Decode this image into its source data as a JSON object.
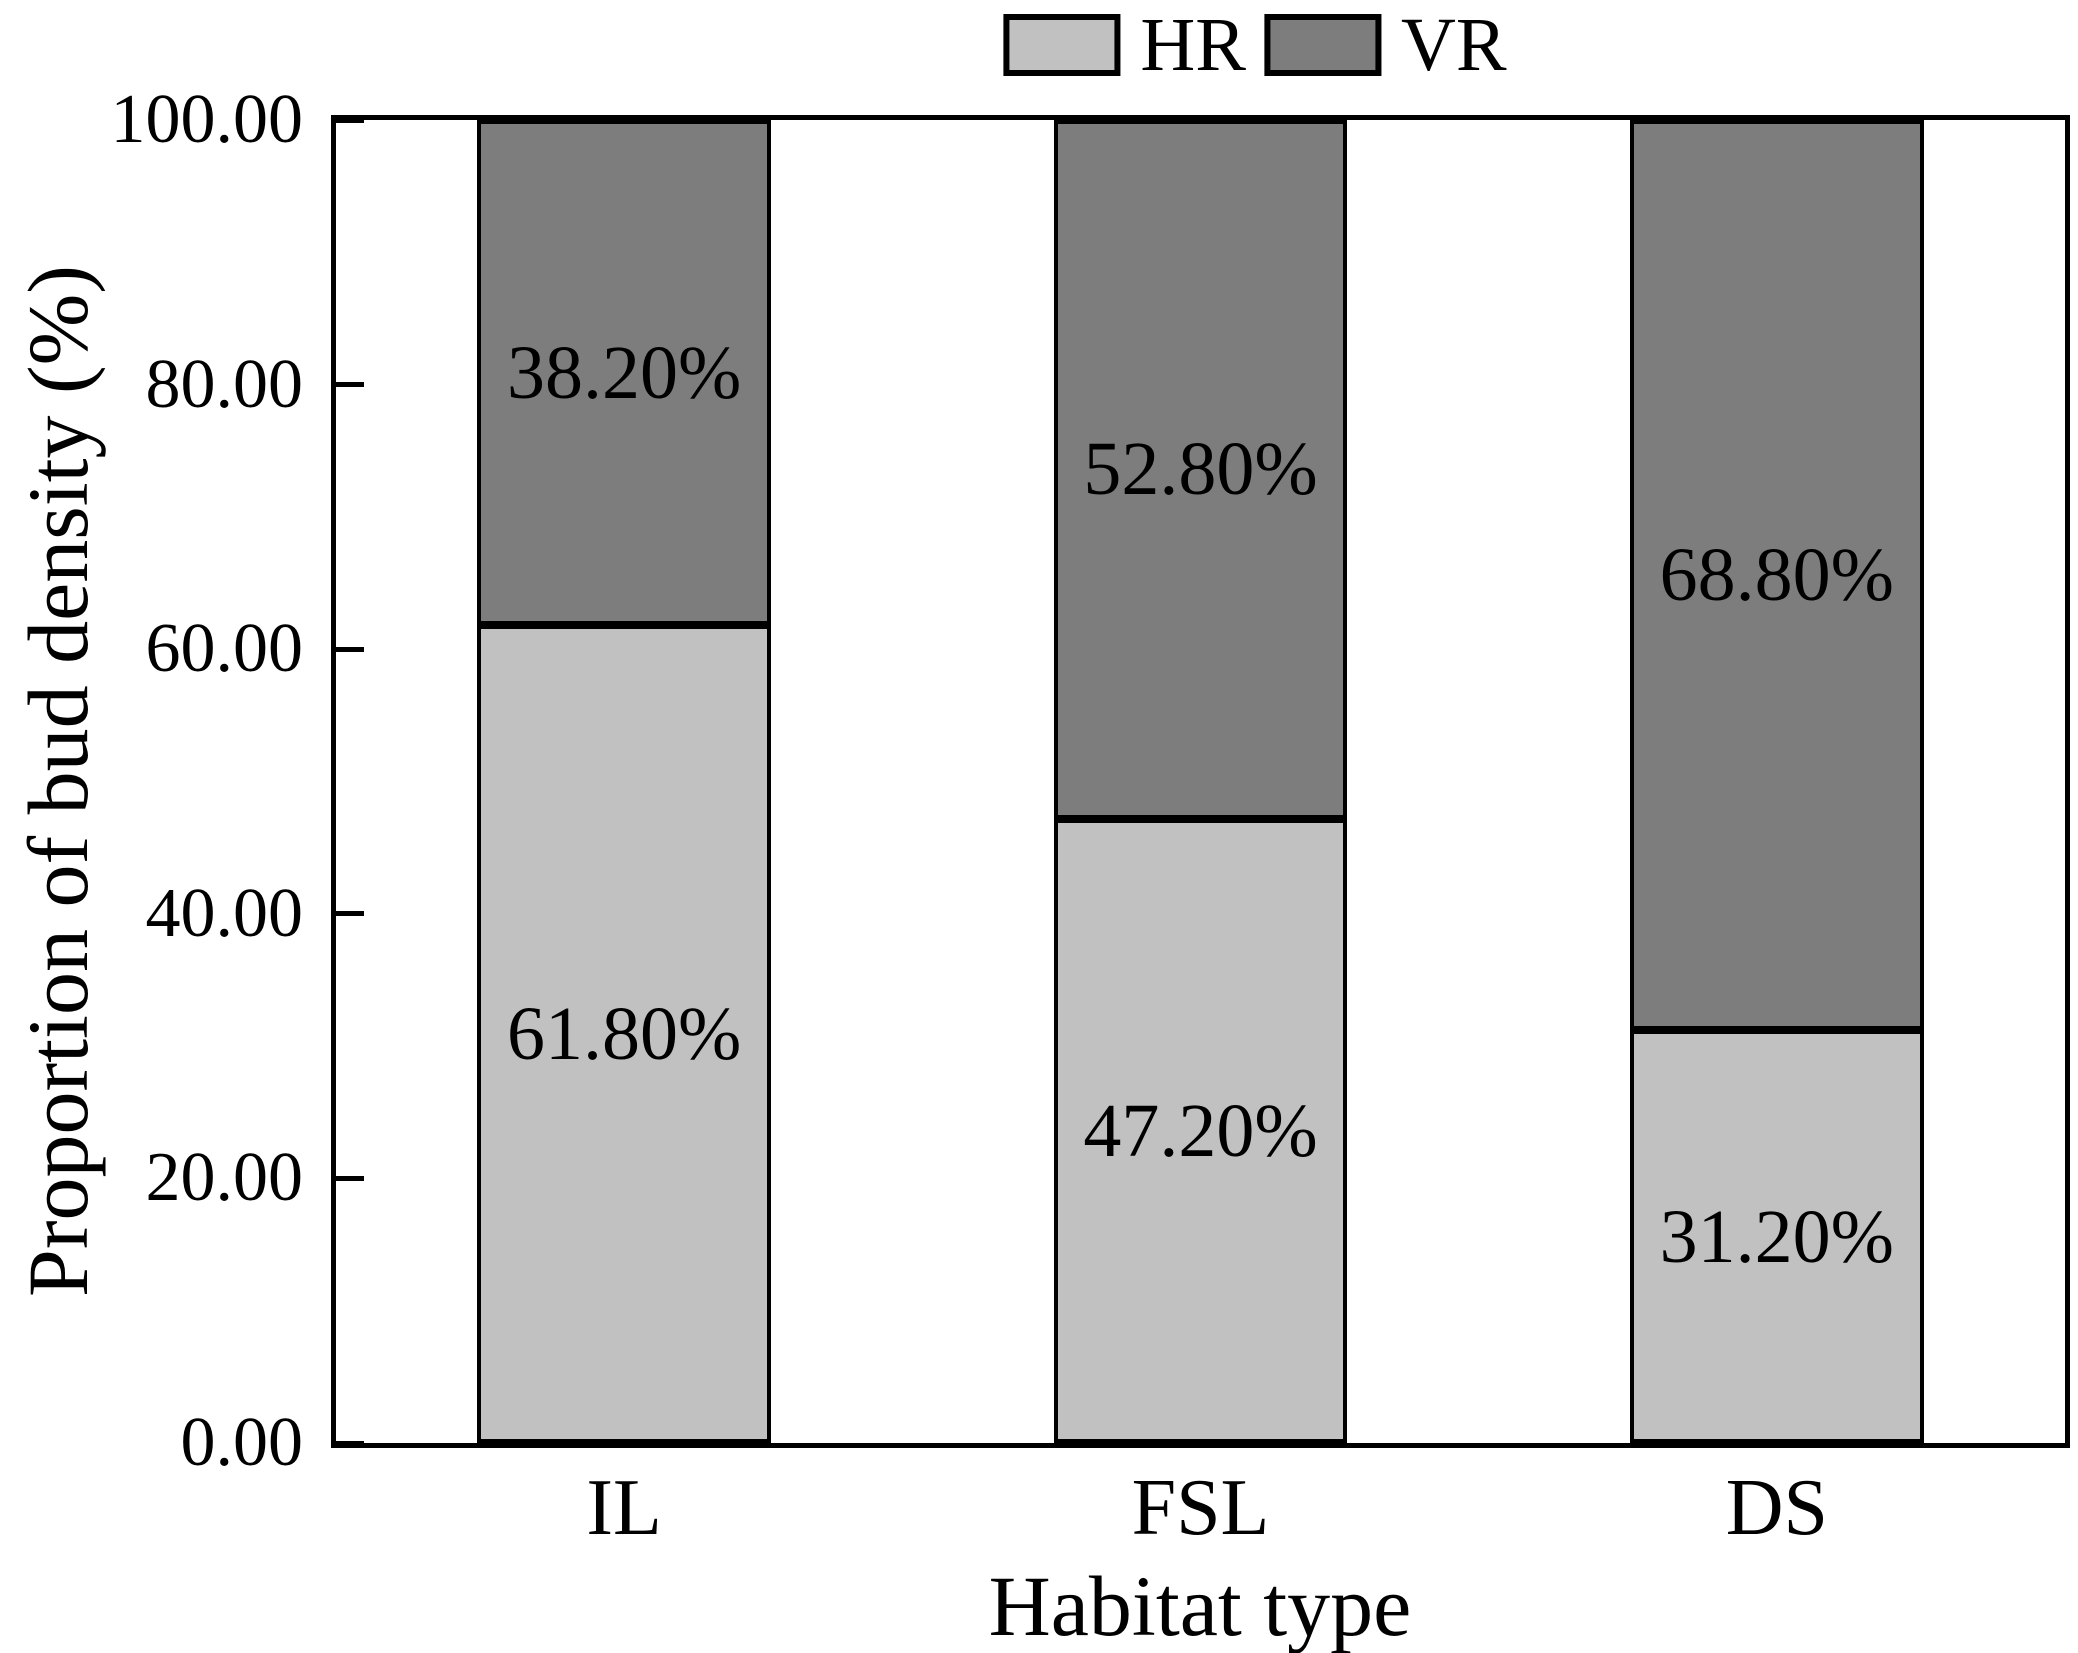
{
  "chart_data": {
    "type": "bar",
    "stacked": true,
    "title": "",
    "xlabel": "Habitat type",
    "ylabel": "Proportion of bud density (%)",
    "categories": [
      "IL",
      "FSL",
      "DS"
    ],
    "series": [
      {
        "name": "HR",
        "color": "#c1c1c1",
        "values": [
          61.8,
          47.2,
          31.2
        ],
        "labels": [
          "61.80%",
          "47.20%",
          "31.20%"
        ]
      },
      {
        "name": "VR",
        "color": "#7d7d7d",
        "values": [
          38.2,
          52.8,
          68.8
        ],
        "labels": [
          "38.20%",
          "52.80%",
          "68.80%"
        ]
      }
    ],
    "ylim": [
      0,
      100
    ],
    "yticks": [
      {
        "value": 0,
        "label": "0.00"
      },
      {
        "value": 20,
        "label": "20.00"
      },
      {
        "value": 40,
        "label": "40.00"
      },
      {
        "value": 60,
        "label": "60.00"
      },
      {
        "value": 80,
        "label": "80.00"
      },
      {
        "value": 100,
        "label": "100.00"
      }
    ],
    "grid": false,
    "legend_position": "top",
    "bar_outline_color": "#000000",
    "axis_color": "#000000",
    "text_color": "#000000"
  }
}
